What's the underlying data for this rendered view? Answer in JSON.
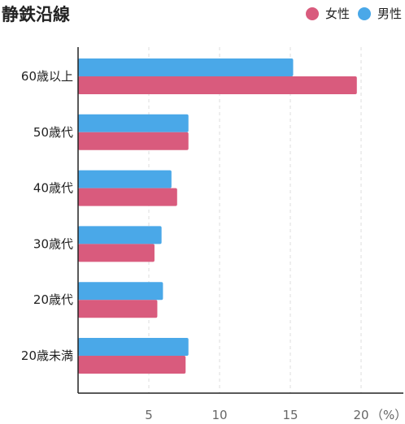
{
  "chart_data": {
    "type": "bar",
    "orientation": "horizontal",
    "title": "静鉄沿線",
    "categories": [
      "60歳以上",
      "50歳代",
      "40歳代",
      "30歳代",
      "20歳代",
      "20歳未満"
    ],
    "series": [
      {
        "name": "男性",
        "color": "#4aa8e8",
        "values": [
          15.2,
          7.8,
          6.6,
          5.9,
          6.0,
          7.8
        ]
      },
      {
        "name": "女性",
        "color": "#d95b7d",
        "values": [
          19.7,
          7.8,
          7.0,
          5.4,
          5.6,
          7.6
        ]
      }
    ],
    "xticks": [
      "5",
      "10",
      "15",
      "20"
    ],
    "xunit": "（%）",
    "xlim": [
      0,
      21
    ],
    "grid": true,
    "legend": "top-right"
  }
}
